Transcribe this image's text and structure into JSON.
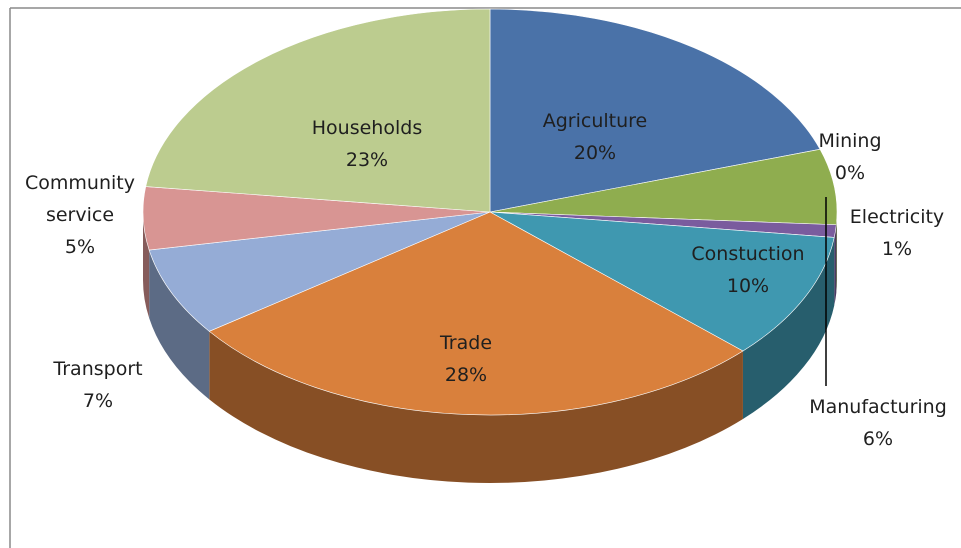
{
  "chart_data": {
    "type": "pie",
    "categories": [
      "Agriculture",
      "Mining",
      "Manufacturing",
      "Electricity",
      "Constuction",
      "Trade",
      "Transport",
      "Community service",
      "Households"
    ],
    "values": [
      20,
      0,
      6,
      1,
      10,
      28,
      7,
      5,
      23
    ],
    "value_labels": [
      "20%",
      "0%",
      "6%",
      "1%",
      "10%",
      "28%",
      "7%",
      "5%",
      "23%"
    ],
    "colors": [
      "#4a72a8",
      "#c0504d",
      "#8fad4f",
      "#7a5c9e",
      "#3f98b0",
      "#d9803c",
      "#95acd6",
      "#d89593",
      "#bccc8f"
    ]
  }
}
